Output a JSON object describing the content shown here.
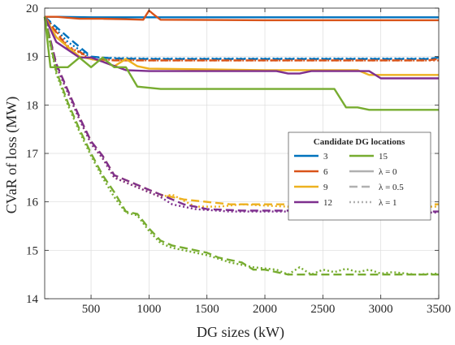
{
  "chart_data": {
    "type": "line",
    "xlabel": "DG sizes (kW)",
    "ylabel": "CVaR of loss (MW)",
    "xlim": [
      100,
      3500
    ],
    "ylim": [
      14,
      20
    ],
    "xticks": [
      500,
      1000,
      1500,
      2000,
      2500,
      3000,
      3500
    ],
    "yticks": [
      14,
      15,
      16,
      17,
      18,
      19,
      20
    ],
    "grid": true,
    "legend": {
      "title": "Candidate DG locations",
      "placement": "center-right",
      "location_entries": [
        {
          "label": "3",
          "color": "#0072BD"
        },
        {
          "label": "6",
          "color": "#D95319"
        },
        {
          "label": "9",
          "color": "#EDB120"
        },
        {
          "label": "12",
          "color": "#7E2F8E"
        },
        {
          "label": "15",
          "color": "#77AC30"
        }
      ],
      "style_entries": [
        {
          "label": "λ = 0",
          "dash": "solid"
        },
        {
          "label": "λ = 0.5",
          "dash": "dashed"
        },
        {
          "label": "λ = 1",
          "dash": "dotted"
        }
      ]
    },
    "series": [
      {
        "location": "3",
        "lambda": "0",
        "color": "#0072BD",
        "dash": "solid",
        "x": [
          100,
          200,
          500,
          3500
        ],
        "y": [
          19.82,
          19.82,
          19.81,
          19.81
        ]
      },
      {
        "location": "3",
        "lambda": "0.5",
        "color": "#0072BD",
        "dash": "dashed",
        "x": [
          100,
          300,
          500,
          700,
          1000,
          3400,
          3500
        ],
        "y": [
          19.82,
          19.4,
          19.0,
          18.96,
          18.95,
          18.95,
          18.98
        ]
      },
      {
        "location": "3",
        "lambda": "1",
        "color": "#0072BD",
        "dash": "dotted",
        "x": [
          100,
          300,
          500,
          1000,
          3500
        ],
        "y": [
          19.82,
          19.3,
          18.98,
          18.96,
          18.96
        ]
      },
      {
        "location": "6",
        "lambda": "0",
        "color": "#D95319",
        "dash": "solid",
        "x": [
          100,
          200,
          400,
          600,
          800,
          950,
          1000,
          1050,
          1100,
          2000,
          3500
        ],
        "y": [
          19.82,
          19.82,
          19.78,
          19.78,
          19.77,
          19.76,
          19.95,
          19.85,
          19.76,
          19.75,
          19.75
        ]
      },
      {
        "location": "6",
        "lambda": "0.5",
        "color": "#D95319",
        "dash": "dashed",
        "x": [
          100,
          200,
          300,
          400,
          500,
          700,
          1000,
          3400,
          3500
        ],
        "y": [
          19.82,
          19.5,
          19.18,
          19.1,
          18.95,
          18.92,
          18.92,
          18.92,
          18.95
        ]
      },
      {
        "location": "6",
        "lambda": "1",
        "color": "#D95319",
        "dash": "dotted",
        "x": [
          100,
          300,
          500,
          1000,
          3500
        ],
        "y": [
          19.82,
          19.22,
          18.94,
          18.92,
          18.92
        ]
      },
      {
        "location": "9",
        "lambda": "0",
        "color": "#EDB120",
        "dash": "solid",
        "x": [
          100,
          200,
          400,
          600,
          700,
          800,
          900,
          1000,
          2000,
          2800,
          2900,
          3500
        ],
        "y": [
          19.82,
          19.4,
          19.0,
          18.9,
          18.8,
          18.95,
          18.8,
          18.75,
          18.72,
          18.72,
          18.62,
          18.62
        ]
      },
      {
        "location": "9",
        "lambda": "0.5",
        "color": "#EDB120",
        "dash": "dashed",
        "x": [
          100,
          200,
          300,
          400,
          500,
          600,
          700,
          800,
          900,
          1000,
          1100,
          1200,
          1300,
          1500,
          1700,
          2000,
          2300,
          2500,
          3000,
          3500
        ],
        "y": [
          19.82,
          18.85,
          18.3,
          17.75,
          17.25,
          16.95,
          16.55,
          16.45,
          16.35,
          16.25,
          16.15,
          16.1,
          16.05,
          16.0,
          15.95,
          15.95,
          15.95,
          15.95,
          15.95,
          15.95
        ]
      },
      {
        "location": "9",
        "lambda": "1",
        "color": "#EDB120",
        "dash": "dotted",
        "x": [
          100,
          200,
          300,
          400,
          500,
          600,
          700,
          800,
          900,
          1000,
          1100,
          1200,
          1400,
          1600,
          1800,
          2200,
          2300,
          2400,
          2500,
          2700,
          3000,
          3500
        ],
        "y": [
          19.82,
          18.8,
          18.25,
          17.7,
          17.2,
          16.9,
          16.5,
          16.4,
          16.3,
          16.2,
          16.1,
          16.15,
          15.9,
          15.9,
          15.95,
          15.9,
          16.05,
          16.0,
          16.05,
          15.95,
          15.9,
          15.9
        ]
      },
      {
        "location": "12",
        "lambda": "0",
        "color": "#7E2F8E",
        "dash": "solid",
        "x": [
          100,
          200,
          400,
          500,
          800,
          1000,
          1300,
          2100,
          2200,
          2300,
          2400,
          2900,
          3000,
          3500
        ],
        "y": [
          19.82,
          19.3,
          18.98,
          18.98,
          18.72,
          18.7,
          18.7,
          18.7,
          18.65,
          18.65,
          18.7,
          18.7,
          18.55,
          18.55
        ]
      },
      {
        "location": "12",
        "lambda": "0.5",
        "color": "#7E2F8E",
        "dash": "dashed",
        "x": [
          100,
          200,
          300,
          400,
          500,
          600,
          700,
          800,
          900,
          1000,
          1100,
          1200,
          1300,
          1500,
          1800,
          2000,
          2500,
          3000,
          3500
        ],
        "y": [
          19.82,
          18.85,
          18.3,
          17.75,
          17.25,
          16.95,
          16.55,
          16.45,
          16.35,
          16.25,
          16.15,
          16.05,
          15.95,
          15.85,
          15.82,
          15.82,
          15.82,
          15.8,
          15.8
        ]
      },
      {
        "location": "12",
        "lambda": "1",
        "color": "#7E2F8E",
        "dash": "dotted",
        "x": [
          100,
          200,
          300,
          400,
          500,
          600,
          700,
          800,
          900,
          1000,
          1100,
          1200,
          1400,
          1700,
          2000,
          2500,
          3000,
          3500
        ],
        "y": [
          19.82,
          18.8,
          18.25,
          17.7,
          17.2,
          16.9,
          16.5,
          16.4,
          16.3,
          16.2,
          16.1,
          15.95,
          15.85,
          15.8,
          15.8,
          15.8,
          15.78,
          15.78
        ]
      },
      {
        "location": "15",
        "lambda": "0",
        "color": "#77AC30",
        "dash": "solid",
        "x": [
          100,
          150,
          300,
          400,
          500,
          600,
          700,
          800,
          900,
          1100,
          1500,
          2600,
          2700,
          2800,
          2900,
          3500
        ],
        "y": [
          19.82,
          18.78,
          18.78,
          18.98,
          18.78,
          18.98,
          18.78,
          18.78,
          18.38,
          18.33,
          18.33,
          18.33,
          17.95,
          17.95,
          17.9,
          17.9
        ]
      },
      {
        "location": "15",
        "lambda": "0.5",
        "color": "#77AC30",
        "dash": "dashed",
        "x": [
          100,
          200,
          300,
          400,
          500,
          600,
          700,
          800,
          900,
          1000,
          1100,
          1200,
          1300,
          1400,
          1500,
          1600,
          1800,
          1900,
          2000,
          2100,
          2200,
          2300,
          2500,
          3000,
          3500
        ],
        "y": [
          19.82,
          18.7,
          18.05,
          17.5,
          17.0,
          16.55,
          16.2,
          15.8,
          15.75,
          15.45,
          15.2,
          15.1,
          15.05,
          15.0,
          14.95,
          14.85,
          14.75,
          14.6,
          14.6,
          14.55,
          14.5,
          14.5,
          14.5,
          14.5,
          14.5
        ]
      },
      {
        "location": "15",
        "lambda": "1",
        "color": "#77AC30",
        "dash": "dotted",
        "x": [
          100,
          200,
          300,
          400,
          500,
          600,
          700,
          800,
          900,
          1000,
          1100,
          1200,
          1300,
          1400,
          1500,
          1700,
          1900,
          2100,
          2200,
          2300,
          2400,
          2500,
          2600,
          2700,
          2800,
          2900,
          3000,
          3100,
          3300,
          3500
        ],
        "y": [
          19.82,
          18.65,
          18.0,
          17.45,
          16.95,
          16.5,
          16.1,
          15.78,
          15.72,
          15.4,
          15.15,
          15.05,
          15.0,
          14.95,
          14.9,
          14.75,
          14.65,
          14.6,
          14.5,
          14.65,
          14.5,
          14.6,
          14.55,
          14.62,
          14.55,
          14.6,
          14.52,
          14.55,
          14.5,
          14.52
        ]
      }
    ]
  }
}
